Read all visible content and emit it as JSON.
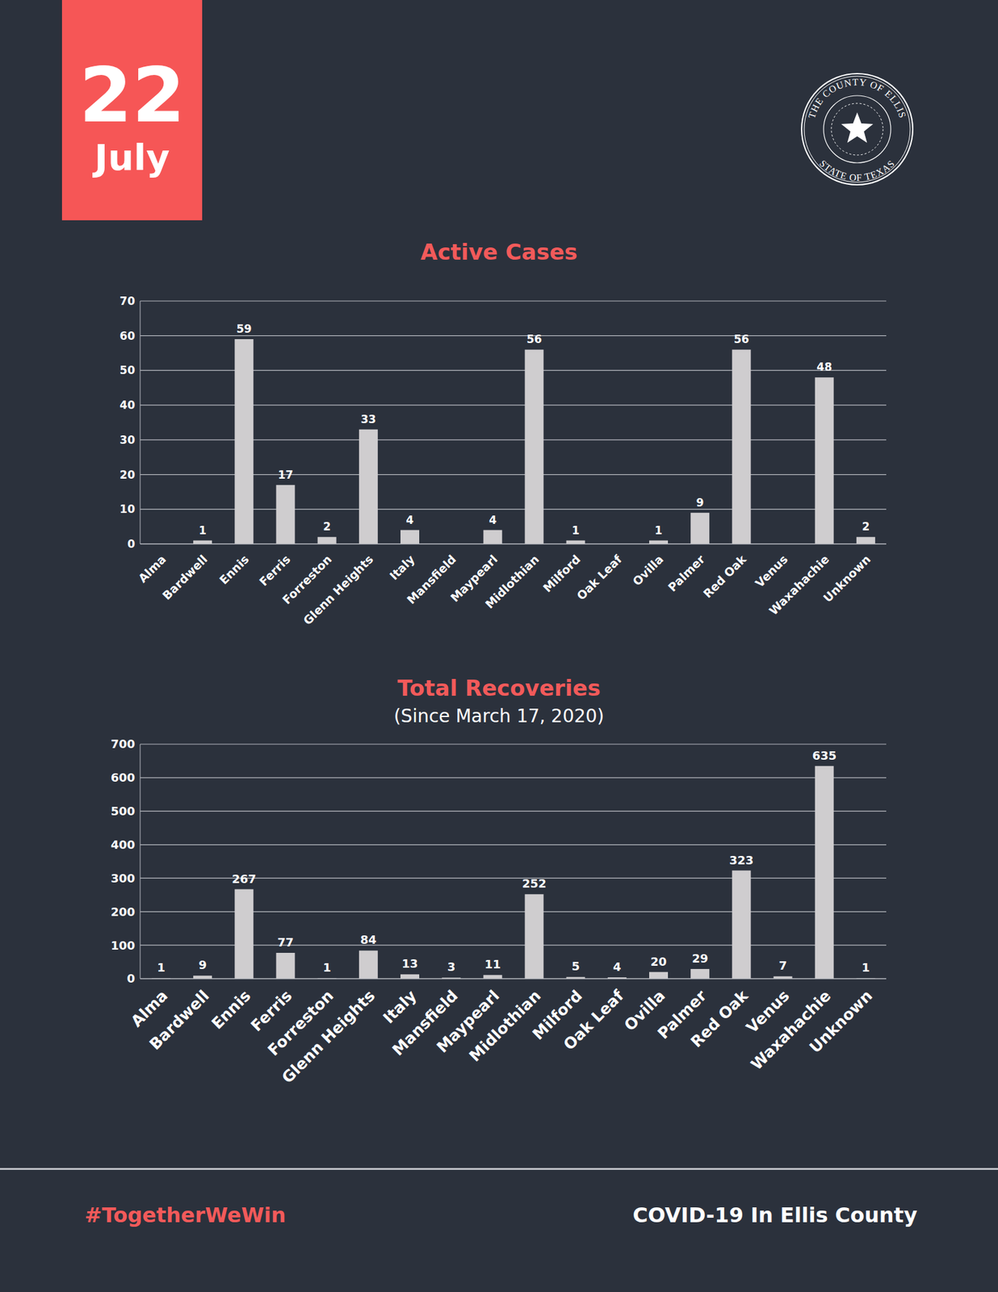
{
  "header": {
    "day": "22",
    "month": "July",
    "seal": {
      "top": "THE COUNTY OF ELLIS",
      "bottom": "STATE OF TEXAS"
    }
  },
  "chart_data": [
    {
      "type": "bar",
      "title": "Active Cases",
      "categories": [
        "Alma",
        "Bardwell",
        "Ennis",
        "Ferris",
        "Forreston",
        "Glenn Heights",
        "Italy",
        "Mansfield",
        "Maypearl",
        "Midlothian",
        "Milford",
        "Oak Leaf",
        "Ovilla",
        "Palmer",
        "Red Oak",
        "Venus",
        "Waxahachie",
        "Unknown"
      ],
      "values": [
        0,
        1,
        59,
        17,
        2,
        33,
        4,
        0,
        4,
        56,
        1,
        0,
        1,
        9,
        56,
        0,
        48,
        2
      ],
      "color": "#cfcdcf",
      "ylim": [
        0,
        70
      ],
      "yticks": [
        0,
        10,
        20,
        30,
        40,
        50,
        60,
        70
      ],
      "grid": true,
      "data_labels": true
    },
    {
      "type": "bar",
      "title": "Total Recoveries",
      "subtitle": "(Since March 17, 2020)",
      "categories": [
        "Alma",
        "Bardwell",
        "Ennis",
        "Ferris",
        "Forreston",
        "Glenn Heights",
        "Italy",
        "Mansfield",
        "Maypearl",
        "Midlothian",
        "Milford",
        "Oak Leaf",
        "Ovilla",
        "Palmer",
        "Red Oak",
        "Venus",
        "Waxahachie",
        "Unknown"
      ],
      "values": [
        1,
        9,
        267,
        77,
        1,
        84,
        13,
        3,
        11,
        252,
        5,
        4,
        20,
        29,
        323,
        7,
        635,
        1
      ],
      "color": "#cfcdcf",
      "ylim": [
        0,
        700
      ],
      "yticks": [
        0,
        100,
        200,
        300,
        400,
        500,
        600,
        700
      ],
      "grid": true,
      "data_labels": true
    }
  ],
  "footer": {
    "left": "#TogetherWeWin",
    "right": "COVID-19 In Ellis County"
  }
}
